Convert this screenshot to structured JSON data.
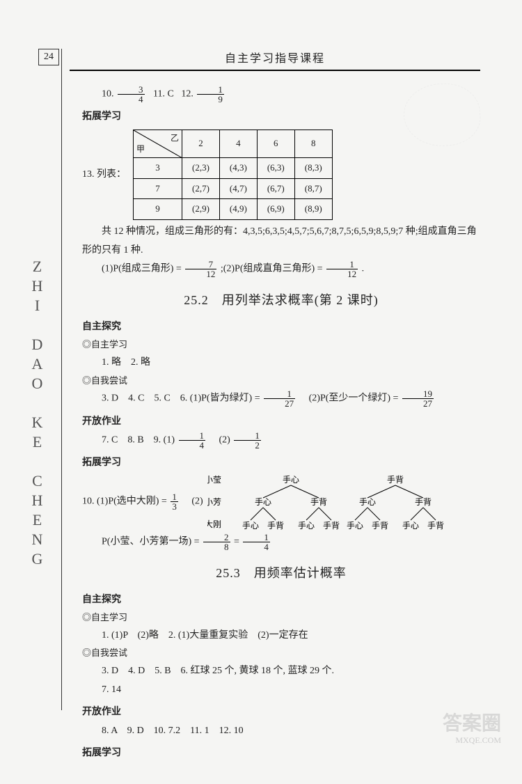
{
  "page_number": "24",
  "header_title": "自主学习指导课程",
  "side_label": "ZHI DAO KE CHENG",
  "line10": {
    "q10_label": "10.",
    "frac10": {
      "n": "3",
      "d": "4"
    },
    "q11": "11. C",
    "q12_label": "12.",
    "frac12": {
      "n": "1",
      "d": "9"
    }
  },
  "expand1_title": "拓展学习",
  "q13_prefix": "13. 列表：",
  "table13": {
    "diag_top": "乙",
    "diag_bot": "甲",
    "col_headers": [
      "2",
      "4",
      "6",
      "8"
    ],
    "rows": [
      {
        "head": "3",
        "cells": [
          "(2,3)",
          "(4,3)",
          "(6,3)",
          "(8,3)"
        ]
      },
      {
        "head": "7",
        "cells": [
          "(2,7)",
          "(4,7)",
          "(6,7)",
          "(8,7)"
        ]
      },
      {
        "head": "9",
        "cells": [
          "(2,9)",
          "(4,9)",
          "(6,9)",
          "(8,9)"
        ]
      }
    ]
  },
  "q13_note": "共 12 种情况，组成三角形的有：4,3,5;6,3,5;4,5,7;5,6,7;8,7,5;6,5,9;8,5,9;7 种;组成直角三角形的只有 1 种.",
  "q13_ans": {
    "a_label": "(1)P(组成三角形) = ",
    "a_frac": {
      "n": "7",
      "d": "12"
    },
    "b_label": ";(2)P(组成直角三角形) = ",
    "b_frac": {
      "n": "1",
      "d": "12"
    },
    "tail": "."
  },
  "sec252_title": "25.2　用列举法求概率(第 2 课时)",
  "sec252": {
    "head1": "自主探究",
    "sub1": "◎自主学习",
    "l1": "1. 略　2. 略",
    "sub2": "◎自我尝试",
    "l2a": "3. D　4. C　5. C　6. (1)P(皆为绿灯) = ",
    "l2frac1": {
      "n": "1",
      "d": "27"
    },
    "l2b": "　(2)P(至少一个绿灯) = ",
    "l2frac2": {
      "n": "19",
      "d": "27"
    },
    "head2": "开放作业",
    "l3a": "7. C　8. B　9. (1)",
    "l3frac1": {
      "n": "1",
      "d": "4"
    },
    "l3b": "　(2)",
    "l3frac2": {
      "n": "1",
      "d": "2"
    },
    "head3": "拓展学习",
    "q10a": "10. (1)P(选中大刚) = ",
    "q10frac": {
      "n": "1",
      "d": "3"
    },
    "q10b": "　(2)",
    "tree": {
      "persons": [
        "小莹",
        "小芳",
        "大刚"
      ],
      "branches": [
        "手心",
        "手背"
      ]
    },
    "q10p2a": "P(小莹、小芳第一场) = ",
    "q10p2frac1": {
      "n": "2",
      "d": "8"
    },
    "q10p2eq": " = ",
    "q10p2frac2": {
      "n": "1",
      "d": "4"
    }
  },
  "sec253_title": "25.3　用频率估计概率",
  "sec253": {
    "head1": "自主探究",
    "sub1": "◎自主学习",
    "l1": "1. (1)P　(2)略　2. (1)大量重复实验　(2)一定存在",
    "sub2": "◎自我尝试",
    "l2": "3. D　4. D　5. B　6. 红球 25 个, 黄球 18 个, 蓝球 29 个.",
    "l3": "7. 14",
    "head2": "开放作业",
    "l4": "8. A　9. D　10. 7.2　11. 1　12. 10",
    "head3": "拓展学习"
  },
  "watermark": "答案圈",
  "watermark_sub": "MXQE.COM"
}
